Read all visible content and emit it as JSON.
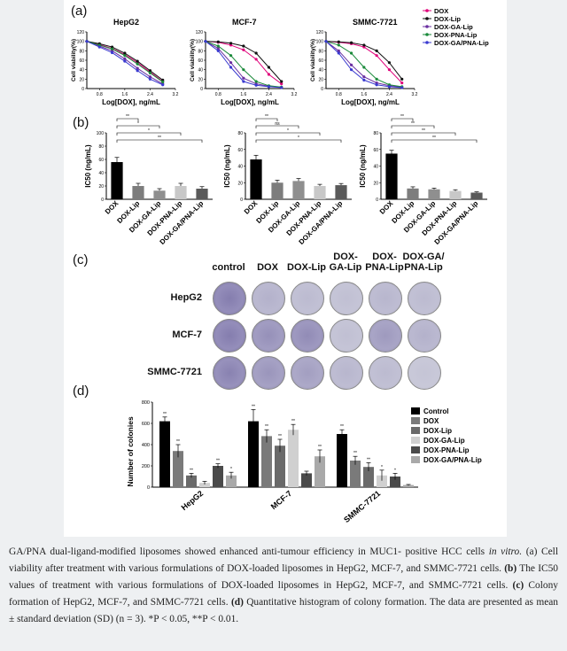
{
  "panel_labels": {
    "a": "(a)",
    "b": "(b)",
    "c": "(c)",
    "d": "(d)"
  },
  "colors": {
    "dox": "#e0007a",
    "lip": "#111111",
    "ga": "#6a2fa0",
    "pna": "#1a8a3a",
    "gapna": "#3a3ad0"
  },
  "viability_legend": [
    {
      "label": "DOX",
      "color": "#e0007a",
      "marker": "circle"
    },
    {
      "label": "DOX-Lip",
      "color": "#111111",
      "marker": "square"
    },
    {
      "label": "DOX-GA-Lip",
      "color": "#6a2fa0",
      "marker": "triangle"
    },
    {
      "label": "DOX-PNA-Lip",
      "color": "#1a8a3a",
      "marker": "triangle-down"
    },
    {
      "label": "DOX-GA/PNA-Lip",
      "color": "#3a3ad0",
      "marker": "diamond"
    }
  ],
  "viability_panel_titles": [
    "HepG2",
    "MCF-7",
    "SMMC-7721"
  ],
  "viability_ylabel": "Cell viability(%)",
  "viability_xlabel": "Log[DOX], ng/mL",
  "viability_yticks": [
    "120",
    "100",
    "80",
    "60",
    "40",
    "20",
    "0"
  ],
  "viability_xticks": [
    [
      "0.8",
      "1.6",
      "2.4",
      "3.2"
    ],
    [
      "0.8",
      "1.6",
      "2.4",
      "3.2"
    ],
    [
      "0.8",
      "1.6",
      "2.4",
      "3.2"
    ]
  ],
  "ic50_ylabels": [
    "IC50 (ng/mL)",
    "IC50 (ng/mL)",
    "IC50 (ng/mL)"
  ],
  "ic50_yticks": [
    [
      "100",
      "80",
      "60",
      "40",
      "20",
      "0"
    ],
    [
      "80",
      "60",
      "40",
      "20",
      "0"
    ],
    [
      "80",
      "60",
      "40",
      "20",
      "0"
    ]
  ],
  "ic50_categories": [
    "DOX",
    "DOX-Lip",
    "DOX-GA-Lip",
    "DOX-PNA-Lip",
    "DOX-GA/PNA-Lip"
  ],
  "ic50_sig": [
    [
      "**",
      "*",
      "*",
      "**"
    ],
    [
      "**",
      "ns",
      "*",
      "*"
    ],
    [
      "**",
      "**",
      "**",
      "**"
    ]
  ],
  "colony_columns": [
    "control",
    "DOX",
    "DOX-Lip",
    "DOX-\nGA-Lip",
    "DOX-\nPNA-Lip",
    "DOX-GA/\nPNA-Lip"
  ],
  "colony_rows": [
    "HepG2",
    "MCF-7",
    "SMMC-7721"
  ],
  "colony_intensity": [
    [
      0.8,
      0.25,
      0.15,
      0.1,
      0.2,
      0.15
    ],
    [
      0.8,
      0.6,
      0.65,
      0.1,
      0.5,
      0.25
    ],
    [
      0.75,
      0.55,
      0.45,
      0.2,
      0.15,
      0.05
    ]
  ],
  "colony_ylabel": "Number of colonies",
  "colony_yticks": [
    "800",
    "600",
    "400",
    "200",
    "0"
  ],
  "colony_legend": [
    "Control",
    "DOX",
    "DOX-Lip",
    "DOX-GA-Lip",
    "DOX-PNA-Lip",
    "DOX-GA/PNA-Lip"
  ],
  "colony_groups": [
    "HepG2",
    "MCF-7",
    "SMMC-7721"
  ],
  "chart_data": [
    {
      "type": "line",
      "title": "HepG2",
      "xlabel": "Log[DOX], ng/mL",
      "ylabel": "Cell viability(%)",
      "xlim": [
        0.4,
        3.2
      ],
      "ylim": [
        0,
        120
      ],
      "x": [
        0.4,
        0.8,
        1.2,
        1.6,
        2.0,
        2.4,
        2.8
      ],
      "series": [
        {
          "name": "DOX",
          "values": [
            100,
            93,
            85,
            72,
            55,
            35,
            15
          ]
        },
        {
          "name": "DOX-Lip",
          "values": [
            100,
            95,
            88,
            75,
            58,
            38,
            18
          ]
        },
        {
          "name": "DOX-GA-Lip",
          "values": [
            100,
            90,
            80,
            63,
            43,
            25,
            10
          ]
        },
        {
          "name": "DOX-PNA-Lip",
          "values": [
            100,
            92,
            84,
            70,
            52,
            33,
            14
          ]
        },
        {
          "name": "DOX-GA/PNA-Lip",
          "values": [
            100,
            88,
            76,
            58,
            38,
            20,
            8
          ]
        }
      ]
    },
    {
      "type": "line",
      "title": "MCF-7",
      "xlabel": "Log[DOX], ng/mL",
      "ylabel": "Cell viability(%)",
      "xlim": [
        0.4,
        3.2
      ],
      "ylim": [
        0,
        120
      ],
      "x": [
        0.4,
        0.8,
        1.2,
        1.6,
        2.0,
        2.4,
        2.8
      ],
      "series": [
        {
          "name": "DOX",
          "values": [
            100,
            98,
            92,
            82,
            62,
            30,
            10
          ]
        },
        {
          "name": "DOX-Lip",
          "values": [
            100,
            99,
            96,
            90,
            75,
            45,
            15
          ]
        },
        {
          "name": "DOX-GA-Lip",
          "values": [
            100,
            85,
            55,
            22,
            10,
            5,
            3
          ]
        },
        {
          "name": "DOX-PNA-Lip",
          "values": [
            100,
            90,
            70,
            40,
            15,
            6,
            3
          ]
        },
        {
          "name": "DOX-GA/PNA-Lip",
          "values": [
            100,
            80,
            45,
            15,
            7,
            4,
            2
          ]
        }
      ]
    },
    {
      "type": "line",
      "title": "SMMC-7721",
      "xlabel": "Log[DOX], ng/mL",
      "ylabel": "Cell viability(%)",
      "xlim": [
        0.4,
        3.2
      ],
      "ylim": [
        0,
        120
      ],
      "x": [
        0.4,
        0.8,
        1.2,
        1.6,
        2.0,
        2.4,
        2.8
      ],
      "series": [
        {
          "name": "DOX",
          "values": [
            100,
            98,
            95,
            88,
            70,
            40,
            12
          ]
        },
        {
          "name": "DOX-Lip",
          "values": [
            100,
            99,
            97,
            92,
            80,
            55,
            20
          ]
        },
        {
          "name": "DOX-GA-Lip",
          "values": [
            100,
            80,
            50,
            25,
            12,
            6,
            3
          ]
        },
        {
          "name": "DOX-PNA-Lip",
          "values": [
            100,
            92,
            75,
            45,
            20,
            8,
            4
          ]
        },
        {
          "name": "DOX-GA/PNA-Lip",
          "values": [
            100,
            75,
            40,
            18,
            8,
            4,
            2
          ]
        }
      ]
    },
    {
      "type": "bar",
      "ylabel": "IC50 (ng/mL)",
      "ylim": [
        0,
        100
      ],
      "categories": [
        "DOX",
        "DOX-Lip",
        "DOX-GA-Lip",
        "DOX-PNA-Lip",
        "DOX-GA/PNA-Lip"
      ],
      "values": [
        56,
        20,
        13,
        20,
        16
      ],
      "errors": [
        7,
        4,
        3,
        4,
        3
      ]
    },
    {
      "type": "bar",
      "ylabel": "IC50 (ng/mL)",
      "ylim": [
        0,
        80
      ],
      "categories": [
        "DOX",
        "DOX-Lip",
        "DOX-GA-Lip",
        "DOX-PNA-Lip",
        "DOX-GA/PNA-Lip"
      ],
      "values": [
        48,
        20,
        22,
        16,
        17
      ],
      "errors": [
        5,
        3,
        3,
        2,
        2
      ]
    },
    {
      "type": "bar",
      "ylabel": "IC50 (ng/mL)",
      "ylim": [
        0,
        80
      ],
      "categories": [
        "DOX",
        "DOX-Lip",
        "DOX-GA-Lip",
        "DOX-PNA-Lip",
        "DOX-GA/PNA-Lip"
      ],
      "values": [
        55,
        13,
        12,
        10,
        8
      ],
      "errors": [
        4,
        2,
        1.5,
        1.5,
        1
      ]
    },
    {
      "type": "bar",
      "ylabel": "Number of colonies",
      "ylim": [
        0,
        800
      ],
      "categories": [
        "HepG2",
        "MCF-7",
        "SMMC-7721"
      ],
      "series": [
        {
          "name": "Control",
          "values": [
            620,
            620,
            500
          ],
          "errors": [
            40,
            110,
            40
          ]
        },
        {
          "name": "DOX",
          "values": [
            340,
            480,
            250
          ],
          "errors": [
            60,
            60,
            40
          ]
        },
        {
          "name": "DOX-Lip",
          "values": [
            110,
            390,
            190
          ],
          "errors": [
            20,
            60,
            40
          ]
        },
        {
          "name": "DOX-GA-Lip",
          "values": [
            40,
            540,
            110
          ],
          "errors": [
            15,
            50,
            50
          ]
        },
        {
          "name": "DOX-PNA-Lip",
          "values": [
            200,
            130,
            100
          ],
          "errors": [
            20,
            20,
            30
          ]
        },
        {
          "name": "DOX-GA/PNA-Lip",
          "values": [
            110,
            290,
            20
          ],
          "errors": [
            30,
            60,
            5
          ]
        }
      ],
      "sig": [
        [
          "**",
          "**",
          "**",
          "",
          "**",
          "*"
        ],
        [
          "**",
          "**",
          "**",
          "**",
          "",
          "**"
        ],
        [
          "**",
          "**",
          "**",
          "*",
          "*",
          ""
        ]
      ]
    }
  ],
  "caption": {
    "intro": "GA/PNA dual-ligand-modified liposomes showed enhanced anti-tumour efficiency in MUC1- positive HCC cells ",
    "intro_italic": "in vitro.",
    "a_label": "(a)",
    "a_text": " Cell viability after treatment with various formulations of DOX-loaded liposomes in HepG2, MCF-7, and SMMC-7721 cells. ",
    "b_label": "(b)",
    "b_text": " The IC50 values of treatment with various formulations of DOX-loaded liposomes in HepG2, MCF-7, and SMMC-7721 cells. ",
    "c_label": "(c)",
    "c_text": " Colony formation of HepG2, MCF-7, and SMMC-7721 cells. ",
    "d_label": "(d)",
    "d_text": " Quantitative histogram of colony formation. The data are presented as mean ± standard deviation (SD) (n = 3). *P < 0.05, **P < 0.01."
  }
}
